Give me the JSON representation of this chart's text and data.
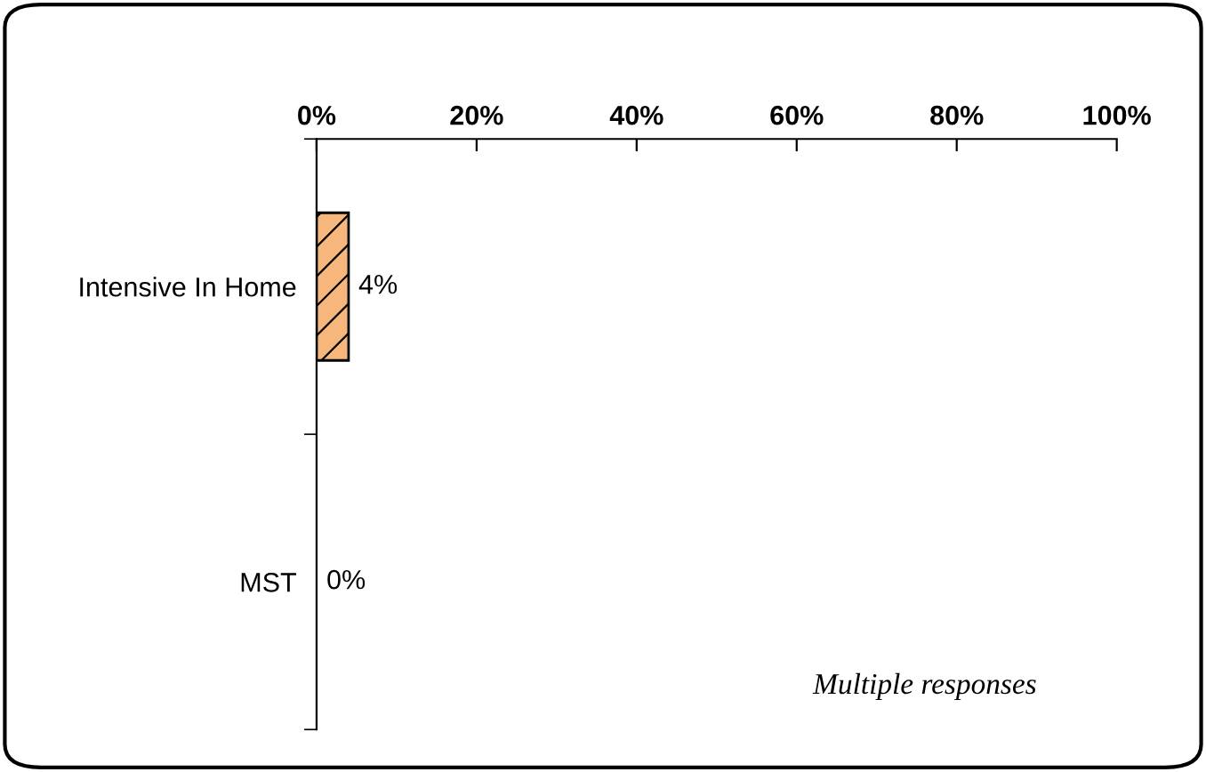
{
  "chart_data": {
    "type": "bar",
    "orientation": "horizontal",
    "categories": [
      "Intensive In Home",
      "MST"
    ],
    "values": [
      4,
      0
    ],
    "value_labels": [
      "4%",
      "0%"
    ],
    "color": "#f7b77c",
    "xlim": [
      0,
      100
    ],
    "xticks": [
      {
        "value": 0,
        "label": "0%"
      },
      {
        "value": 20,
        "label": "20%"
      },
      {
        "value": 40,
        "label": "40%"
      },
      {
        "value": 60,
        "label": "60%"
      },
      {
        "value": 80,
        "label": "80%"
      },
      {
        "value": 100,
        "label": "100%"
      }
    ],
    "grid": false,
    "legend": false,
    "annotations": [
      "Multiple responses"
    ]
  }
}
